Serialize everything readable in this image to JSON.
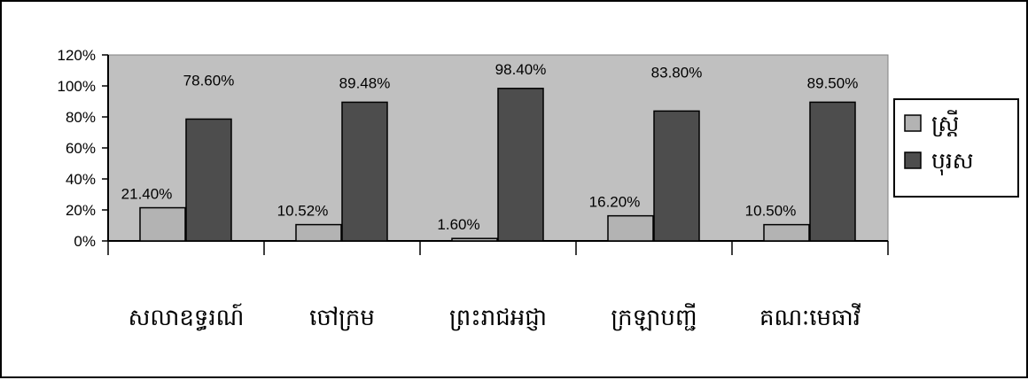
{
  "chart_data": {
    "type": "bar",
    "categories": [
      "សលាឧទ្ធរណ៍",
      "ចៅក្រម",
      "ព្រះរាជអជ្ញា",
      "ក្រឡាបញ្ជី",
      "គណៈមេធាវី"
    ],
    "series": [
      {
        "name": "ស្រ្តី",
        "color": "#b3b3b3",
        "values": [
          21.4,
          10.52,
          1.6,
          16.2,
          10.5
        ],
        "labels": [
          "21.40%",
          "10.52%",
          "1.60%",
          "16.20%",
          "10.50%"
        ]
      },
      {
        "name": "បុរស",
        "color": "#4d4d4d",
        "values": [
          78.6,
          89.48,
          98.4,
          83.8,
          89.5
        ],
        "labels": [
          "78.60%",
          "89.48%",
          "98.40%",
          "83.80%",
          "89.50%"
        ]
      }
    ],
    "ylim": [
      0,
      120
    ],
    "yticks": [
      "0%",
      "20%",
      "40%",
      "60%",
      "80%",
      "100%",
      "120%"
    ],
    "plot_background": "#c0c0c0",
    "grid": false,
    "legend": "right"
  }
}
